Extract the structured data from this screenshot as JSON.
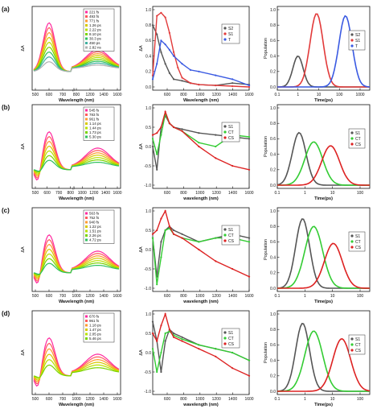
{
  "figure": {
    "rows": [
      {
        "label": "(a)",
        "spectra": {
          "xlabel": "Wavelength (nm)",
          "ylabel": "ΔA",
          "xticks": [
            "500",
            "600",
            "700",
            "800",
            "1200",
            "1400",
            "1600"
          ],
          "legend": [
            "221 fs",
            "493 fs",
            "771 fs",
            "1.26 ps",
            "2.22 ps",
            "8.10 ps",
            "30.3 ps",
            "450 ps",
            "2.82 ns"
          ]
        },
        "species": {
          "xlabel": "Wavelength (nm)",
          "ylabel": "ΔA",
          "yticks": [
            "1.0",
            "0.8",
            "0.6",
            "0.4",
            "0.2",
            "0.0"
          ],
          "xticks": [
            "600",
            "800",
            "1000",
            "1200",
            "1400",
            "1600"
          ],
          "legend": [
            "S2",
            "S1",
            "T"
          ]
        },
        "kinetics": {
          "xlabel": "Time(ps)",
          "ylabel": "Population",
          "yticks": [
            "1.0",
            "0.8",
            "0.6",
            "0.4",
            "0.2",
            "0.0"
          ],
          "xticks": [
            "0.1",
            "1",
            "10",
            "100",
            "1000"
          ],
          "legend": [
            "S2",
            "S1",
            "T"
          ]
        }
      },
      {
        "label": "(b)",
        "spectra": {
          "xlabel": "Wavelength (nm)",
          "ylabel": "ΔA",
          "xticks": [
            "500",
            "600",
            "700",
            "800",
            "1000",
            "1200",
            "1400",
            "1600"
          ],
          "legend": [
            "545 fs",
            "783 fs",
            "961 fs",
            "1.14 ps",
            "1.44 ps",
            "1.73 ps",
            "5.30 ps"
          ]
        },
        "species": {
          "xlabel": "wavelength (nm)",
          "ylabel": "ΔA",
          "yticks": [
            "1.0",
            "0.5",
            "0.0",
            "-0.5",
            "-1.0"
          ],
          "xticks": [
            "600",
            "800",
            "1000",
            "1200",
            "1400",
            "1600"
          ],
          "legend": [
            "S1",
            "CT",
            "CS"
          ]
        },
        "kinetics": {
          "xlabel": "Time(ps)",
          "ylabel": "Population",
          "yticks": [
            "1.0",
            "0.8",
            "0.6",
            "0.4",
            "0.2",
            "0.0"
          ],
          "xticks": [
            "0.1",
            "1",
            "10",
            "100"
          ],
          "legend": [
            "S1",
            "CT",
            "CS"
          ]
        }
      },
      {
        "label": "(c)",
        "spectra": {
          "xlabel": "Wavelength (nm)",
          "ylabel": "ΔA",
          "xticks": [
            "500",
            "600",
            "700",
            "1000",
            "1200",
            "1400",
            "1600"
          ],
          "legend": [
            "563 fs",
            "752 fs",
            "940 fs",
            "1.22 ps",
            "1.51 ps",
            "2.26 ps",
            "4.72 ps"
          ]
        },
        "species": {
          "xlabel": "wavelength (nm)",
          "ylabel": "ΔA",
          "yticks": [
            "1.0",
            "0.5",
            "0.0",
            "-0.5",
            "-1.0"
          ],
          "xticks": [
            "600",
            "800",
            "1000",
            "1200",
            "1400",
            "1600"
          ],
          "legend": [
            "S1",
            "CT",
            "CS"
          ]
        },
        "kinetics": {
          "xlabel": "Time(ps)",
          "ylabel": "Population",
          "yticks": [
            "1.0",
            "0.8",
            "0.6",
            "0.4",
            "0.2",
            "0.0"
          ],
          "xticks": [
            "0.1",
            "1",
            "10",
            "100"
          ],
          "legend": [
            "S1",
            "CT",
            "CS"
          ]
        }
      },
      {
        "label": "(d)",
        "spectra": {
          "xlabel": "Wavelength (nm)",
          "ylabel": "ΔA",
          "xticks": [
            "500",
            "600",
            "700",
            "1000",
            "1200",
            "1400",
            "1600"
          ],
          "legend": [
            "670 fs",
            "961 fs",
            "1.18 ps",
            "1.47 ps",
            "2.05 ps",
            "5.46 ps"
          ]
        },
        "species": {
          "xlabel": "wavelength (nm)",
          "ylabel": "ΔA",
          "yticks": [
            "1.0",
            "0.5",
            "0.0",
            "-0.5",
            "-1.0"
          ],
          "xticks": [
            "600",
            "800",
            "1000",
            "1200",
            "1400",
            "1600"
          ],
          "legend": [
            "S1",
            "CT",
            "CS"
          ]
        },
        "kinetics": {
          "xlabel": "Time(ps)",
          "ylabel": "Population",
          "yticks": [
            "1.0",
            "0.8",
            "0.6",
            "0.4",
            "0.2",
            "0.0"
          ],
          "xticks": [
            "0.1",
            "1",
            "10",
            "100"
          ],
          "legend": [
            "S1",
            "CT",
            "CS"
          ]
        }
      }
    ]
  },
  "chart_data": [
    {
      "type": "line",
      "panel": "a-middle",
      "xlabel": "Wavelength (nm)",
      "ylabel": "ΔA",
      "xlim": [
        450,
        1600
      ],
      "ylim": [
        0,
        1.0
      ],
      "series": [
        {
          "name": "S2",
          "color": "#555555",
          "x": [
            450,
            500,
            550,
            600,
            650,
            700,
            800,
            900,
            1000,
            1200,
            1400,
            1600
          ],
          "values": [
            0.8,
            0.68,
            0.45,
            0.3,
            0.18,
            0.1,
            0.08,
            0.05,
            0.03,
            0.02,
            0.05,
            0.03
          ]
        },
        {
          "name": "S1",
          "color": "#e23a3a",
          "x": [
            450,
            500,
            550,
            600,
            650,
            700,
            750,
            800,
            900,
            1000,
            1200,
            1400,
            1600
          ],
          "values": [
            0.15,
            0.92,
            0.96,
            0.9,
            0.7,
            0.45,
            0.25,
            0.12,
            0.05,
            0.03,
            0.02,
            0.01,
            0.0
          ]
        },
        {
          "name": "T",
          "color": "#3a5ae2",
          "x": [
            450,
            500,
            550,
            600,
            650,
            700,
            800,
            900,
            1000,
            1200,
            1400,
            1600
          ],
          "values": [
            0.1,
            0.3,
            0.6,
            0.55,
            0.48,
            0.4,
            0.3,
            0.22,
            0.2,
            0.15,
            0.1,
            0.02
          ]
        }
      ]
    },
    {
      "type": "line",
      "panel": "a-right",
      "xlabel": "Time(ps)",
      "ylabel": "Population",
      "xscale": "log",
      "xlim": [
        0.1,
        3000
      ],
      "ylim": [
        0,
        1.0
      ],
      "series": [
        {
          "name": "S2",
          "color": "#555555",
          "peak_time": 1,
          "peak": 0.4
        },
        {
          "name": "S1",
          "color": "#e23a3a",
          "peak_time": 8,
          "peak": 0.95
        },
        {
          "name": "T",
          "color": "#3a5ae2",
          "peak_time": 200,
          "peak": 0.92
        }
      ]
    },
    {
      "type": "line",
      "panel": "b-middle",
      "xlabel": "wavelength (nm)",
      "ylabel": "ΔA",
      "xlim": [
        450,
        1600
      ],
      "ylim": [
        -1.0,
        1.0
      ],
      "series": [
        {
          "name": "S1",
          "color": "#555555",
          "x": [
            450,
            500,
            550,
            600,
            650,
            700,
            800,
            1000,
            1200,
            1400,
            1600
          ],
          "values": [
            0.0,
            -0.6,
            0.5,
            0.8,
            0.6,
            0.5,
            0.45,
            0.35,
            0.3,
            0.25,
            0.2
          ]
        },
        {
          "name": "CT",
          "color": "#33cc33",
          "x": [
            450,
            500,
            550,
            600,
            650,
            700,
            800,
            1000,
            1200,
            1400,
            1600
          ],
          "values": [
            0.2,
            -0.2,
            0.3,
            0.85,
            0.6,
            0.5,
            0.4,
            0.1,
            0.0,
            0.3,
            0.25
          ]
        },
        {
          "name": "CS",
          "color": "#dd2222",
          "x": [
            450,
            500,
            550,
            600,
            650,
            700,
            800,
            1000,
            1200,
            1400,
            1600
          ],
          "values": [
            0.3,
            0.35,
            0.5,
            0.9,
            0.6,
            0.5,
            0.4,
            0.0,
            -0.3,
            -0.5,
            -0.6
          ]
        }
      ]
    },
    {
      "type": "line",
      "panel": "b-right",
      "xlabel": "Time(ps)",
      "ylabel": "Population",
      "xscale": "log",
      "xlim": [
        0.1,
        200
      ],
      "ylim": [
        0,
        1.0
      ],
      "series": [
        {
          "name": "S1",
          "color": "#555555",
          "peak_time": 0.6,
          "peak": 0.68
        },
        {
          "name": "CT",
          "color": "#33cc33",
          "peak_time": 2,
          "peak": 0.56
        },
        {
          "name": "CS",
          "color": "#dd2222",
          "peak_time": 8,
          "peak": 0.51
        }
      ]
    },
    {
      "type": "line",
      "panel": "c-middle",
      "xlabel": "wavelength (nm)",
      "ylabel": "ΔA",
      "xlim": [
        450,
        1600
      ],
      "ylim": [
        -1.0,
        1.0
      ],
      "series": [
        {
          "name": "S1",
          "color": "#555555",
          "x": [
            450,
            500,
            550,
            600,
            650,
            700,
            800,
            1000,
            1200,
            1400,
            1600
          ],
          "values": [
            0.3,
            -0.7,
            0.2,
            0.5,
            0.6,
            0.5,
            0.4,
            0.2,
            0.3,
            0.4,
            0.3
          ]
        },
        {
          "name": "CT",
          "color": "#33cc33",
          "x": [
            450,
            500,
            550,
            600,
            650,
            700,
            800,
            1000,
            1200,
            1400,
            1600
          ],
          "values": [
            0.3,
            -0.9,
            -0.2,
            0.5,
            0.55,
            0.4,
            0.3,
            0.2,
            0.3,
            0.3,
            0.2
          ]
        },
        {
          "name": "CS",
          "color": "#dd2222",
          "x": [
            450,
            500,
            550,
            600,
            650,
            700,
            800,
            1000,
            1200,
            1400,
            1600
          ],
          "values": [
            0.4,
            0.5,
            0.8,
            1.0,
            0.6,
            0.4,
            0.3,
            0.0,
            -0.3,
            -0.5,
            -0.7
          ]
        }
      ]
    },
    {
      "type": "line",
      "panel": "c-right",
      "xlabel": "Time(ps)",
      "ylabel": "Population",
      "xscale": "log",
      "xlim": [
        0.1,
        200
      ],
      "ylim": [
        0,
        1.0
      ],
      "series": [
        {
          "name": "S1",
          "color": "#555555",
          "peak_time": 0.8,
          "peak": 0.9
        },
        {
          "name": "CT",
          "color": "#33cc33",
          "peak_time": 2,
          "peak": 0.8
        },
        {
          "name": "CS",
          "color": "#dd2222",
          "peak_time": 10,
          "peak": 0.58
        }
      ]
    },
    {
      "type": "line",
      "panel": "d-middle",
      "xlabel": "wavelength (nm)",
      "ylabel": "ΔA",
      "xlim": [
        450,
        1600
      ],
      "ylim": [
        -1.0,
        1.0
      ],
      "series": [
        {
          "name": "S1",
          "color": "#555555",
          "x": [
            450,
            500,
            550,
            600,
            650,
            700,
            800,
            1000,
            1200,
            1400,
            1600
          ],
          "values": [
            0.8,
            0.3,
            -0.5,
            0.3,
            0.6,
            0.5,
            0.4,
            0.2,
            0.1,
            0.0,
            -0.2
          ]
        },
        {
          "name": "CT",
          "color": "#33cc33",
          "x": [
            450,
            500,
            550,
            600,
            650,
            700,
            800,
            1000,
            1200,
            1400,
            1600
          ],
          "values": [
            0.1,
            -0.5,
            0.0,
            0.5,
            0.55,
            0.45,
            0.35,
            0.2,
            0.1,
            0.0,
            -0.2
          ]
        },
        {
          "name": "CS",
          "color": "#dd2222",
          "x": [
            450,
            500,
            550,
            600,
            650,
            700,
            800,
            1000,
            1200,
            1400,
            1600
          ],
          "values": [
            0.5,
            0.3,
            0.7,
            1.0,
            0.6,
            0.4,
            0.3,
            0.1,
            -0.1,
            -0.4,
            -0.6
          ]
        }
      ]
    },
    {
      "type": "line",
      "panel": "d-right",
      "xlabel": "Time(ps)",
      "ylabel": "Population",
      "xscale": "log",
      "xlim": [
        0.1,
        200
      ],
      "ylim": [
        0,
        1.0
      ],
      "series": [
        {
          "name": "S1",
          "color": "#555555",
          "peak_time": 0.8,
          "peak": 0.88
        },
        {
          "name": "CT",
          "color": "#33cc33",
          "peak_time": 2,
          "peak": 0.78
        },
        {
          "name": "CS",
          "color": "#dd2222",
          "peak_time": 20,
          "peak": 0.68
        }
      ]
    }
  ]
}
